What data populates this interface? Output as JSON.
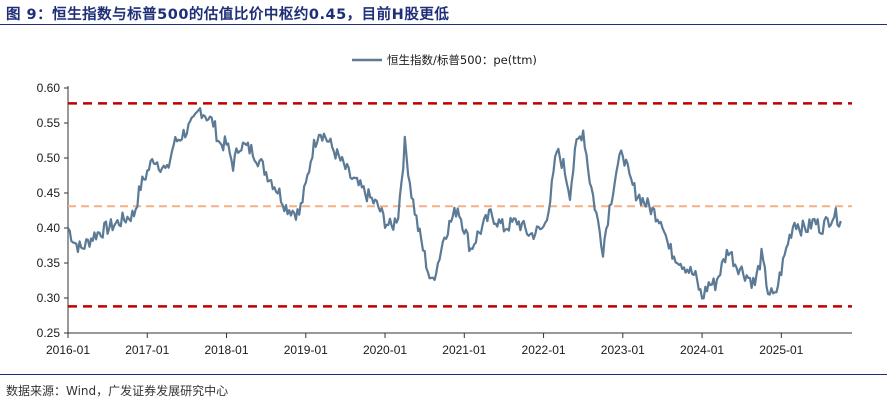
{
  "header": {
    "title": "图 9：恒生指数与标普500的估值比价中枢约0.45，目前H股更低"
  },
  "footer": {
    "source": "数据来源：Wind，广发证券发展研究中心"
  },
  "colors": {
    "series": "#5b7a96",
    "ref_red": "#c00000",
    "ref_orange": "#f4b183",
    "title": "#1e2f78"
  },
  "chart_data": {
    "type": "line",
    "legend_placement": "top-center",
    "grid": false,
    "ylim": [
      0.25,
      0.6
    ],
    "y_ticks": [
      "0.60",
      "0.55",
      "0.50",
      "0.45",
      "0.40",
      "0.35",
      "0.30",
      "0.25"
    ],
    "x_tick_labels": [
      "2016-01",
      "2017-01",
      "2018-01",
      "2019-01",
      "2020-01",
      "2021-01",
      "2022-01",
      "2023-01",
      "2024-01",
      "2025-01"
    ],
    "reference_lines": [
      {
        "value": 0.578,
        "style": "dashed",
        "color": "#c00000"
      },
      {
        "value": 0.431,
        "style": "dashed",
        "color": "#f4b183"
      },
      {
        "value": 0.288,
        "style": "dashed",
        "color": "#c00000"
      }
    ],
    "series": [
      {
        "name": "恒生指数/标普500：pe(ttm)",
        "points": [
          [
            "2016-01",
            0.4
          ],
          [
            "2016-02",
            0.38
          ],
          [
            "2016-03",
            0.37
          ],
          [
            "2016-05",
            0.39
          ],
          [
            "2016-07",
            0.4
          ],
          [
            "2016-09",
            0.41
          ],
          [
            "2016-11",
            0.42
          ],
          [
            "2016-12",
            0.46
          ],
          [
            "2017-01",
            0.48
          ],
          [
            "2017-02",
            0.5
          ],
          [
            "2017-03",
            0.49
          ],
          [
            "2017-04",
            0.48
          ],
          [
            "2017-05",
            0.52
          ],
          [
            "2017-06",
            0.53
          ],
          [
            "2017-07",
            0.54
          ],
          [
            "2017-08",
            0.55
          ],
          [
            "2017-09",
            0.57
          ],
          [
            "2017-10",
            0.56
          ],
          [
            "2017-11",
            0.55
          ],
          [
            "2017-12",
            0.52
          ],
          [
            "2018-01",
            0.52
          ],
          [
            "2018-02",
            0.49
          ],
          [
            "2018-03",
            0.52
          ],
          [
            "2018-05",
            0.51
          ],
          [
            "2018-07",
            0.48
          ],
          [
            "2018-09",
            0.45
          ],
          [
            "2018-10",
            0.43
          ],
          [
            "2018-12",
            0.42
          ],
          [
            "2019-01",
            0.46
          ],
          [
            "2019-02",
            0.51
          ],
          [
            "2019-03",
            0.54
          ],
          [
            "2019-04",
            0.53
          ],
          [
            "2019-06",
            0.5
          ],
          [
            "2019-08",
            0.47
          ],
          [
            "2019-10",
            0.45
          ],
          [
            "2019-12",
            0.43
          ],
          [
            "2020-01",
            0.41
          ],
          [
            "2020-02",
            0.4
          ],
          [
            "2020-03",
            0.42
          ],
          [
            "2020-04",
            0.52
          ],
          [
            "2020-05",
            0.45
          ],
          [
            "2020-06",
            0.4
          ],
          [
            "2020-07",
            0.36
          ],
          [
            "2020-08",
            0.32
          ],
          [
            "2020-09",
            0.35
          ],
          [
            "2020-10",
            0.39
          ],
          [
            "2020-11",
            0.41
          ],
          [
            "2020-12",
            0.43
          ],
          [
            "2021-01",
            0.4
          ],
          [
            "2021-02",
            0.37
          ],
          [
            "2021-03",
            0.39
          ],
          [
            "2021-05",
            0.42
          ],
          [
            "2021-07",
            0.4
          ],
          [
            "2021-09",
            0.41
          ],
          [
            "2021-11",
            0.39
          ],
          [
            "2022-01",
            0.4
          ],
          [
            "2022-02",
            0.44
          ],
          [
            "2022-03",
            0.51
          ],
          [
            "2022-04",
            0.49
          ],
          [
            "2022-05",
            0.45
          ],
          [
            "2022-06",
            0.52
          ],
          [
            "2022-07",
            0.54
          ],
          [
            "2022-08",
            0.47
          ],
          [
            "2022-09",
            0.42
          ],
          [
            "2022-10",
            0.37
          ],
          [
            "2022-11",
            0.43
          ],
          [
            "2022-12",
            0.48
          ],
          [
            "2023-01",
            0.51
          ],
          [
            "2023-02",
            0.47
          ],
          [
            "2023-03",
            0.45
          ],
          [
            "2023-05",
            0.43
          ],
          [
            "2023-07",
            0.41
          ],
          [
            "2023-08",
            0.37
          ],
          [
            "2023-10",
            0.35
          ],
          [
            "2023-12",
            0.33
          ],
          [
            "2024-01",
            0.3
          ],
          [
            "2024-02",
            0.32
          ],
          [
            "2024-03",
            0.32
          ],
          [
            "2024-05",
            0.37
          ],
          [
            "2024-06",
            0.35
          ],
          [
            "2024-08",
            0.33
          ],
          [
            "2024-09",
            0.32
          ],
          [
            "2024-10",
            0.36
          ],
          [
            "2024-11",
            0.31
          ],
          [
            "2024-12",
            0.3
          ],
          [
            "2025-01",
            0.34
          ],
          [
            "2025-02",
            0.38
          ],
          [
            "2025-03",
            0.41
          ],
          [
            "2025-04",
            0.4
          ],
          [
            "2025-05",
            0.4
          ],
          [
            "2025-06",
            0.41
          ],
          [
            "2025-07",
            0.4
          ],
          [
            "2025-08",
            0.41
          ],
          [
            "2025-09",
            0.42
          ],
          [
            "2025-10",
            0.41
          ]
        ]
      }
    ]
  }
}
